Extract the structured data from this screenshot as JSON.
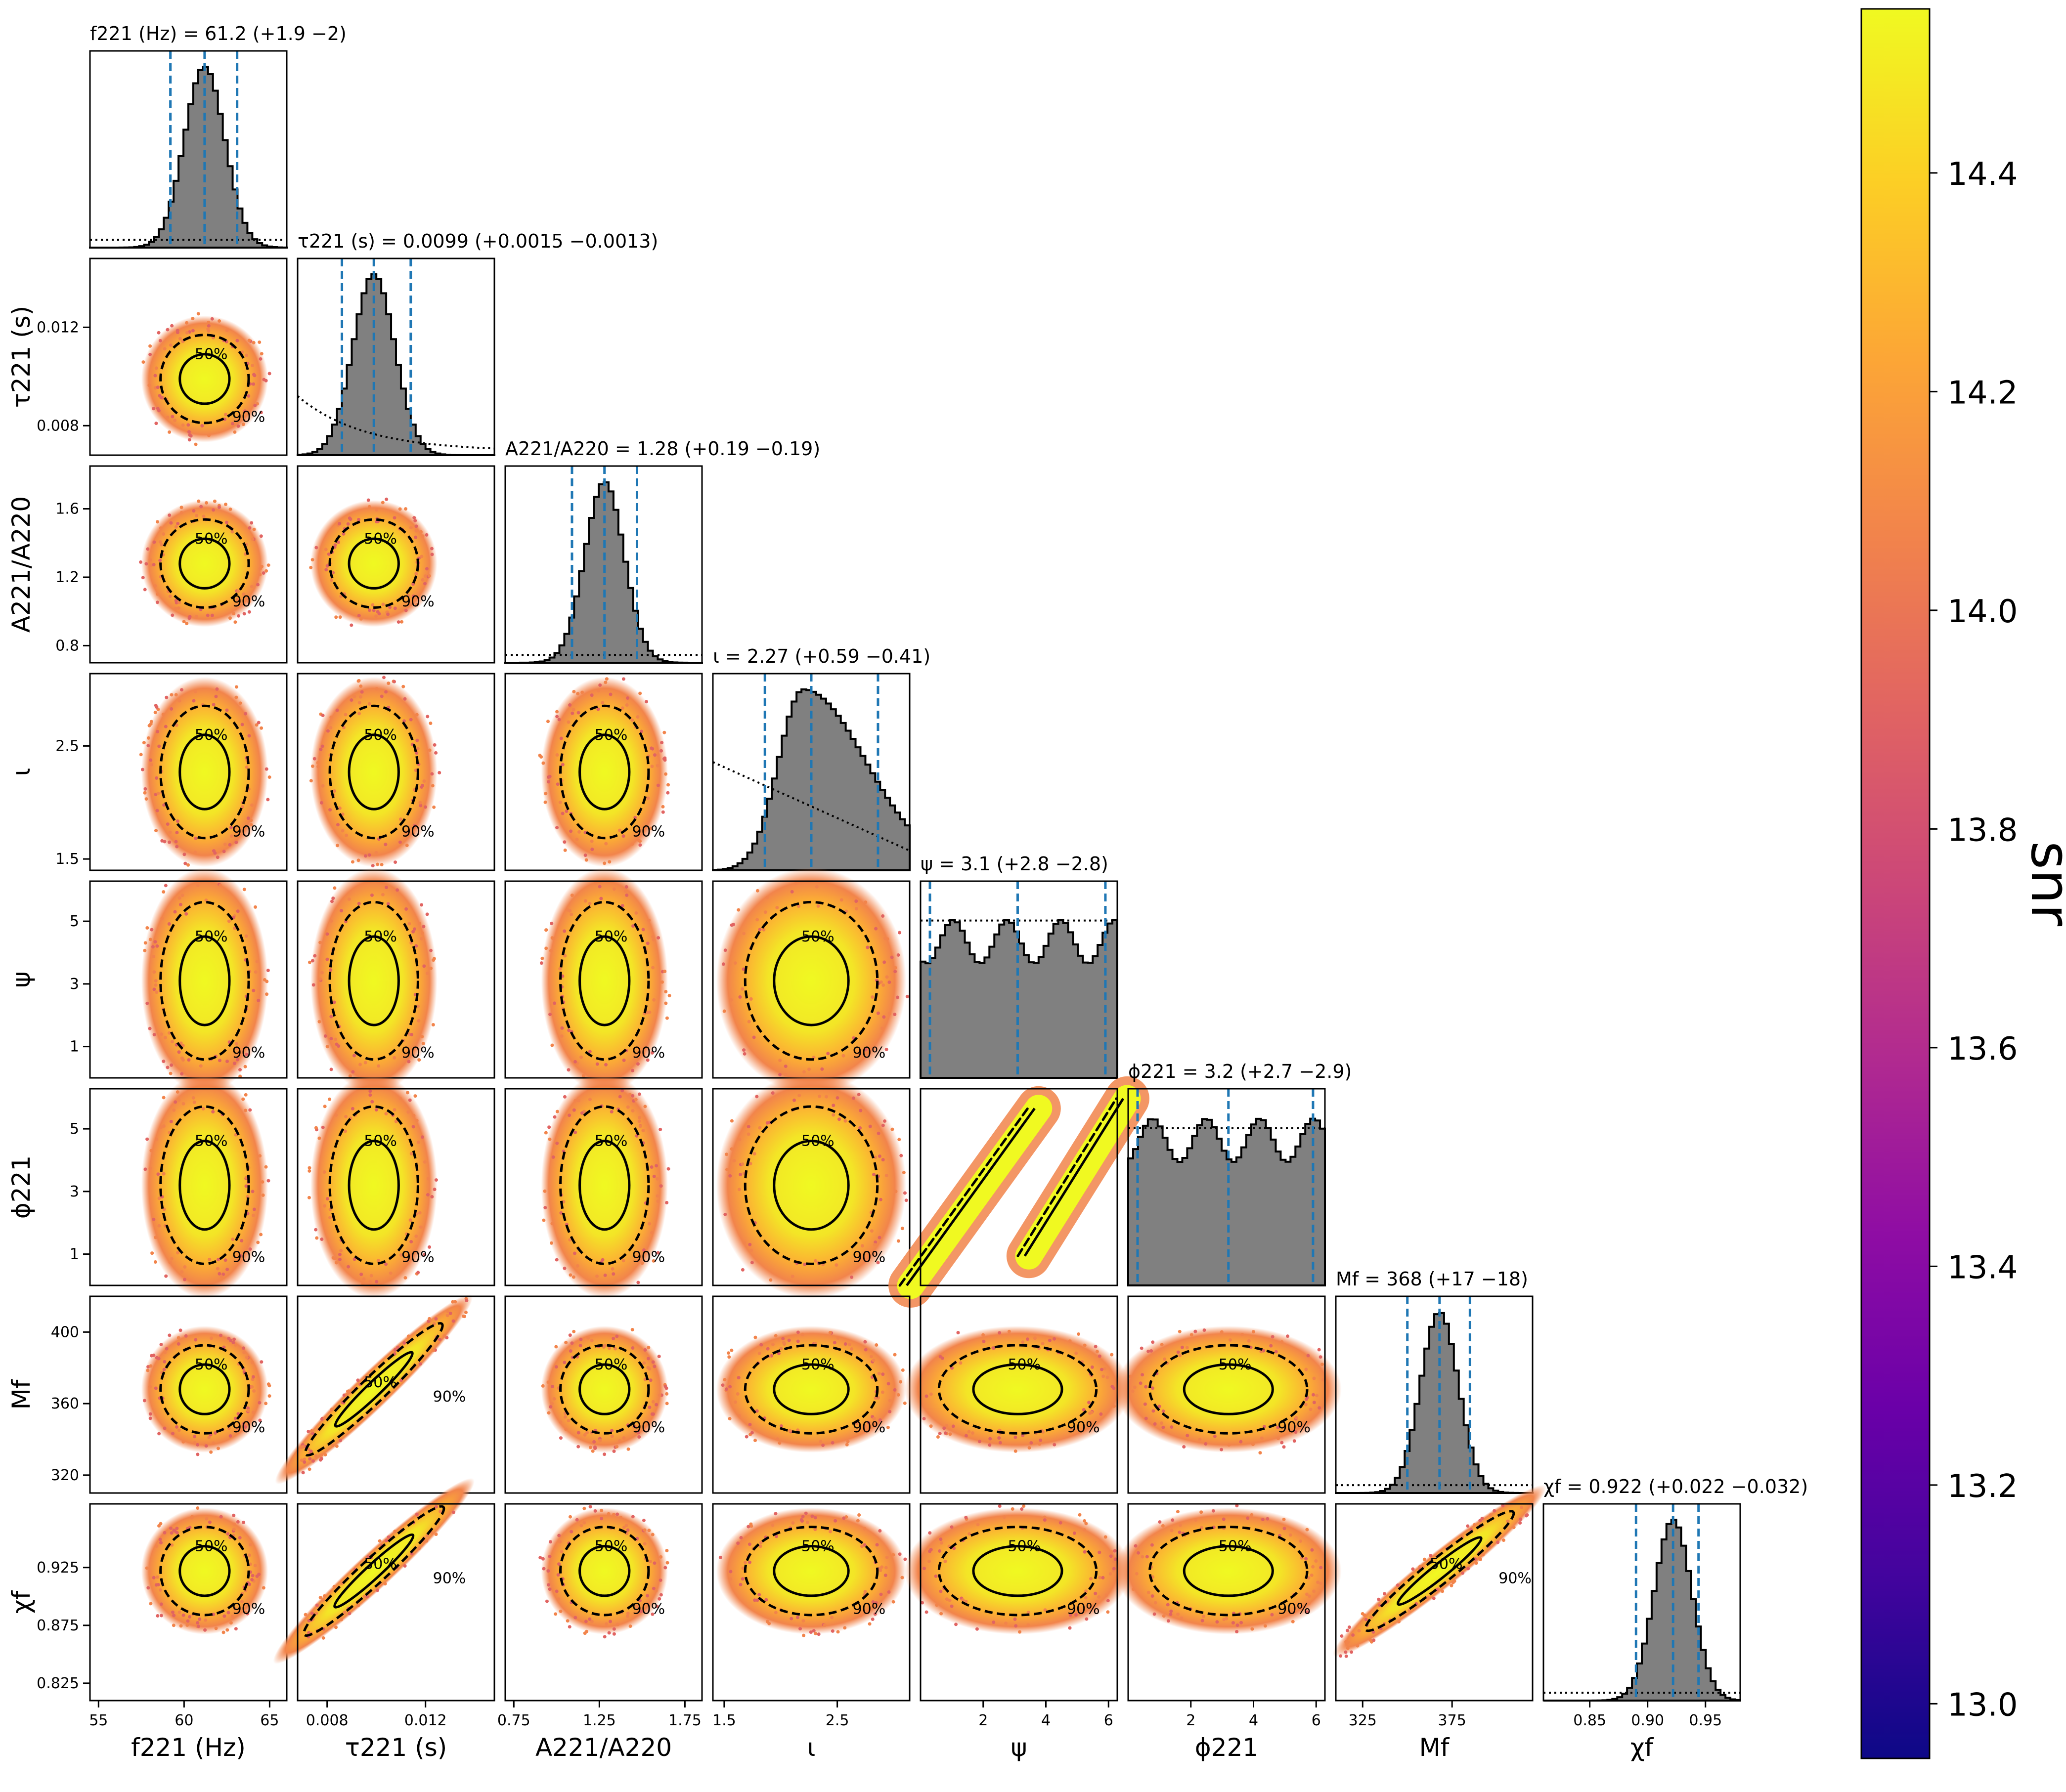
{
  "chart_data": {
    "type": "corner",
    "parameters": [
      {
        "id": "f221",
        "label": "f_221 (Hz)",
        "title": "f221 (Hz) = 61.2 (+1.9 −2)",
        "median": 61.2,
        "lo": 59.2,
        "hi": 63.1,
        "range": [
          54.5,
          66
        ],
        "ticks": [
          55,
          60,
          65
        ],
        "tick_labels": [
          "55",
          "60",
          "65"
        ]
      },
      {
        "id": "tau221",
        "label": "τ_221 (s)",
        "title": "τ221 (s) = 0.0099 (+0.0015 −0.0013)",
        "median": 0.0099,
        "lo": 0.0086,
        "hi": 0.0114,
        "range": [
          0.0068,
          0.0148
        ],
        "ticks": [
          0.008,
          0.012
        ],
        "tick_labels": [
          "0.008",
          "0.012"
        ]
      },
      {
        "id": "A221_A220",
        "label": "A_221/A_220",
        "title": "A221/A220 = 1.28 (+0.19 −0.19)",
        "median": 1.28,
        "lo": 1.09,
        "hi": 1.47,
        "range": [
          0.7,
          1.85
        ],
        "ticks": [
          0.8,
          1.2,
          1.6
        ],
        "tick_labels": [
          "0.8",
          "1.2",
          "1.6"
        ]
      },
      {
        "id": "iota",
        "label": "ι",
        "title": "ι = 2.27 (+0.59 −0.41)",
        "median": 2.27,
        "lo": 1.86,
        "hi": 2.86,
        "range": [
          1.4,
          3.14
        ],
        "ticks": [
          1.5,
          2.5
        ],
        "tick_labels": [
          "1.5",
          "2.5"
        ]
      },
      {
        "id": "psi",
        "label": "ψ",
        "title": "ψ = 3.1 (+2.8 −2.8)",
        "median": 3.1,
        "lo": 0.3,
        "hi": 5.9,
        "range": [
          0,
          6.28
        ],
        "ticks": [
          1,
          3,
          5
        ],
        "tick_labels": [
          "1",
          "3",
          "5"
        ]
      },
      {
        "id": "phi221",
        "label": "ϕ_221",
        "title": "ϕ221 = 3.2 (+2.7 −2.9)",
        "median": 3.2,
        "lo": 0.3,
        "hi": 5.9,
        "range": [
          0,
          6.28
        ],
        "ticks": [
          1,
          3,
          5
        ],
        "tick_labels": [
          "1",
          "3",
          "5"
        ]
      },
      {
        "id": "Mf",
        "label": "M_f",
        "title": "Mf = 368 (+17 −18)",
        "median": 368,
        "lo": 350,
        "hi": 385,
        "range": [
          310,
          420
        ],
        "ticks": [
          320,
          360,
          400
        ],
        "tick_labels": [
          "320",
          "360",
          "400"
        ]
      },
      {
        "id": "chif",
        "label": "χ_f",
        "title": "χf = 0.922 (+0.022 −0.032)",
        "median": 0.922,
        "lo": 0.89,
        "hi": 0.944,
        "range": [
          0.81,
          0.98
        ],
        "ticks": [
          0.825,
          0.875,
          0.925
        ],
        "tick_labels": [
          "0.825",
          "0.875",
          "0.925"
        ]
      }
    ],
    "xaxis_ticks": [
      {
        "ticks": [
          55,
          60,
          65
        ],
        "labels": [
          "55",
          "60",
          "65"
        ]
      },
      {
        "ticks": [
          0.008,
          0.012
        ],
        "labels": [
          "0.008",
          "0.012"
        ]
      },
      {
        "ticks": [
          0.75,
          1.25,
          1.75
        ],
        "labels": [
          "0.75",
          "1.25",
          "1.75"
        ]
      },
      {
        "ticks": [
          1.5,
          2.5
        ],
        "labels": [
          "1.5",
          "2.5"
        ]
      },
      {
        "ticks": [
          2,
          4,
          6
        ],
        "labels": [
          "2",
          "4",
          "6"
        ]
      },
      {
        "ticks": [
          2,
          4,
          6
        ],
        "labels": [
          "2",
          "4",
          "6"
        ]
      },
      {
        "ticks": [
          325,
          375
        ],
        "labels": [
          "325",
          "375"
        ]
      },
      {
        "ticks": [
          0.85,
          0.9,
          0.95
        ],
        "labels": [
          "0.85",
          "0.90",
          "0.95"
        ]
      }
    ],
    "xaxis_labels": [
      "f221 (Hz)",
      "τ221 (s)",
      "A221/A220",
      "ι",
      "ψ",
      "ϕ221",
      "Mf",
      "χf"
    ],
    "yaxis_labels": [
      "",
      "τ221 (s)",
      "A221/A220",
      "ι",
      "ψ",
      "ϕ221",
      "Mf",
      "χf"
    ],
    "contour_levels": [
      "50%",
      "90%"
    ],
    "colorbar": {
      "label": "snr",
      "min": 12.95,
      "max": 14.55,
      "ticks": [
        13.0,
        13.2,
        13.4,
        13.6,
        13.8,
        14.0,
        14.2,
        14.4
      ],
      "tick_labels": [
        "13.0",
        "13.2",
        "13.4",
        "13.6",
        "13.8",
        "14.0",
        "14.2",
        "14.4"
      ],
      "colormap": "plasma"
    },
    "colors": {
      "histogram_fill": "#808080",
      "credible_line": "#1f77b4",
      "contour": "#000000",
      "prior": "#000000"
    }
  }
}
